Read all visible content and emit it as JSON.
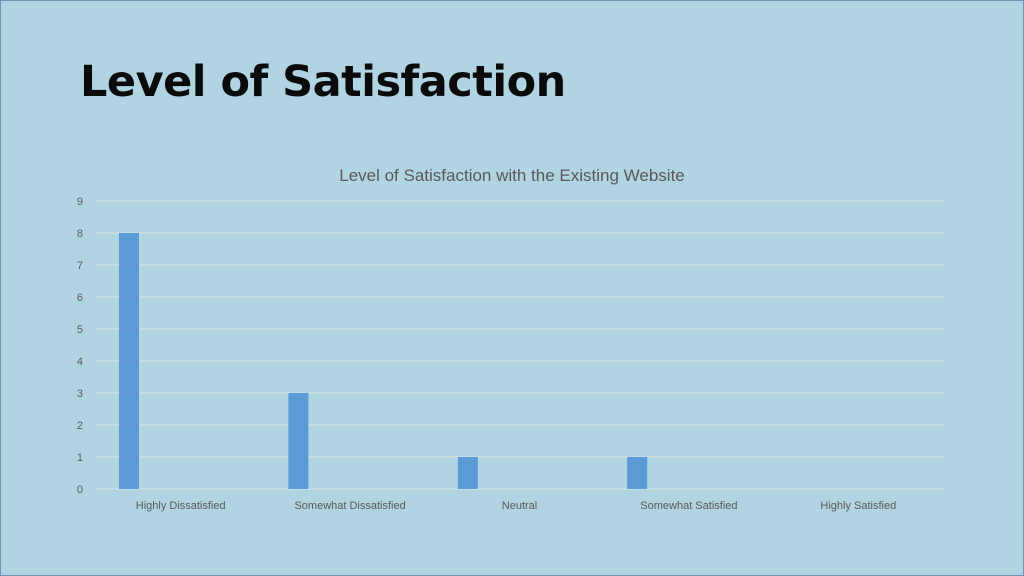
{
  "slide": {
    "title": "Level of Satisfaction"
  },
  "chart_data": {
    "type": "bar",
    "title": "Level of Satisfaction with the Existing Website",
    "xlabel": "",
    "ylabel": "",
    "categories": [
      "Highly Dissatisfied",
      "Somewhat Dissatisfied",
      "Neutral",
      "Somewhat Satisfied",
      "Highly Satisfied"
    ],
    "values": [
      8,
      3,
      1,
      1,
      0
    ],
    "ylim": [
      0,
      9
    ],
    "yticks": [
      0,
      1,
      2,
      3,
      4,
      5,
      6,
      7,
      8,
      9
    ],
    "grid": true,
    "legend": "none",
    "bar_color": "#5b9bd5",
    "grid_color": "#d9e6ec",
    "text_color": "#595959"
  }
}
